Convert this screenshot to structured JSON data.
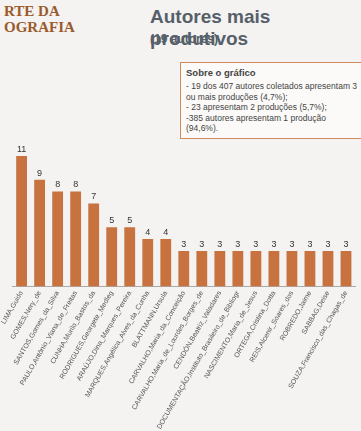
{
  "header_logo": [
    "RTE DA",
    "OGRAFIA"
  ],
  "chart_data": {
    "type": "bar",
    "title": "Autores mais produtivos",
    "subtitle": "(19 autores)",
    "annotations": {
      "title": "Sobre o gráfico",
      "lines": [
        "- 19 dos 407 autores coletados apresentam 3 ou mais produções (4,7%);",
        "- 23 apresentam 2 produções (5,7%);",
        "-385 autores apresentam 1 produção (94,6%)."
      ]
    },
    "categories": [
      "LIMA,Guido",
      "GOMES,Nery_de",
      "SANTOS,Gomes_da_Silva",
      "PAULO,Antônio_Viana_de_Freitas",
      "CUNHA,Murilo_Bastos_da",
      "RODRIGUES,Georgete_Medleg",
      "ARAÚJO,Dina_Marques_Pereira",
      "MARQUES,Angélica_Alves_da_Cunha",
      "BLATTMANN,Ursula",
      "CARVALHO,Maria_da_Conceição",
      "CARVALHO,Maria_de_Lourdes_Borges_de",
      "CENDÓN,Beatriz_Valadares",
      "DOCUMENTAÇÃO,Instituto_Brasileiro_de_Bibliogr",
      "NASCIMENTO,Maria_de_Jesus",
      "ORTEGA,Cristina_Dotta",
      "REIS,Alcenir_Soares_dos",
      "ROBREDO,Jaime",
      "SABBAG,Deise",
      "SOUZA,Francisco_das_Chagas_de"
    ],
    "values": [
      11,
      9,
      8,
      8,
      7,
      5,
      5,
      4,
      4,
      3,
      3,
      3,
      3,
      3,
      3,
      3,
      3,
      3,
      3
    ],
    "color": "#c8733f",
    "ylim": [
      0,
      12
    ],
    "grid": false,
    "data_labels": true,
    "tick_labels": "x"
  }
}
